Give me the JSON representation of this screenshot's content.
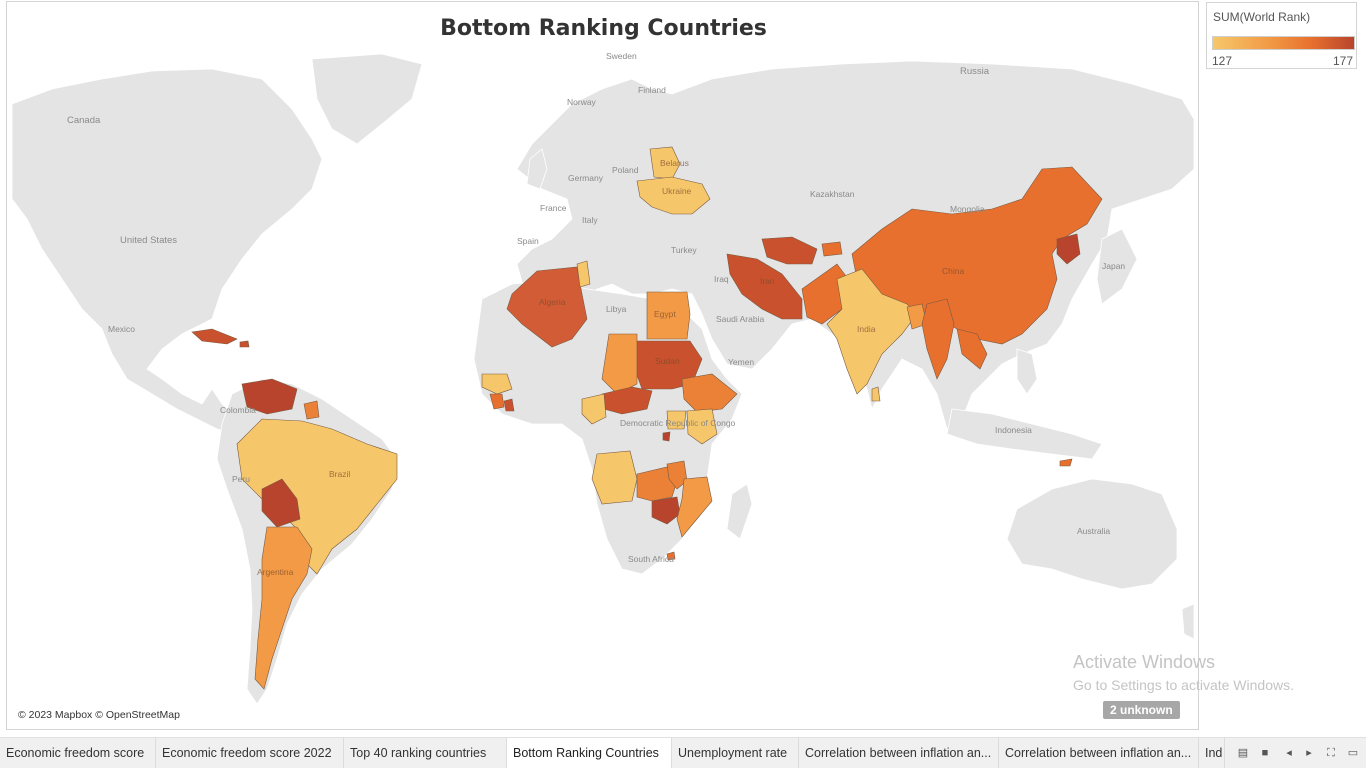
{
  "title": "Bottom Ranking Countries",
  "legend": {
    "title": "SUM(World Rank)",
    "min": "127",
    "max": "177"
  },
  "attribution": "© 2023 Mapbox © OpenStreetMap",
  "unknown_badge": "2 unknown",
  "watermark": {
    "line1": "Activate Windows",
    "line2": "Go to Settings to activate Windows."
  },
  "map_labels": {
    "russia": "Russia",
    "sweden": "Sweden",
    "finland": "Finland",
    "norway": "Norway",
    "canada": "Canada",
    "poland": "Poland",
    "germany": "Germany",
    "france": "France",
    "italy": "Italy",
    "spain": "Spain",
    "ukraine": "Ukraine",
    "belarus": "Belarus",
    "kazakhstan": "Kazakhstan",
    "mongolia": "Mongolia",
    "turkey": "Turkey",
    "united_states": "United States",
    "mexico": "Mexico",
    "iraq": "Iraq",
    "iran": "Iran",
    "china": "China",
    "japan": "Japan",
    "libya": "Libya",
    "egypt": "Egypt",
    "saudi_arabia": "Saudi Arabia",
    "algeria": "Algeria",
    "sudan": "Sudan",
    "yemen": "Yemen",
    "india": "India",
    "colombia": "Colombia",
    "drc": "Democratic Republic of Congo",
    "indonesia": "Indonesia",
    "peru": "Peru",
    "brazil": "Brazil",
    "south_africa": "South Africa",
    "australia": "Australia",
    "argentina": "Argentina"
  },
  "tabs": [
    {
      "label": "Economic freedom score"
    },
    {
      "label": "Economic freedom score 2022"
    },
    {
      "label": "Top 40 ranking countries"
    },
    {
      "label": "Bottom Ranking Countries"
    },
    {
      "label": "Unemployment rate"
    },
    {
      "label": "Correlation between inflation an..."
    },
    {
      "label": "Correlation between inflation an..."
    },
    {
      "label": "Ind"
    }
  ],
  "colors": {
    "low": "#f6c76a",
    "mid_low": "#f29a45",
    "mid": "#e7702f",
    "high": "#c9512d",
    "very_high": "#b8442e",
    "land": "#e4e4e4",
    "ocean": "#ffffff",
    "border": "#ffffff"
  }
}
